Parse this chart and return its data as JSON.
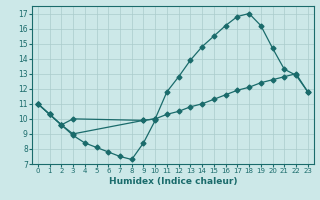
{
  "title": "",
  "xlabel": "Humidex (Indice chaleur)",
  "ylabel": "",
  "xlim": [
    -0.5,
    23.5
  ],
  "ylim": [
    7,
    17.5
  ],
  "xticks": [
    0,
    1,
    2,
    3,
    4,
    5,
    6,
    7,
    8,
    9,
    10,
    11,
    12,
    13,
    14,
    15,
    16,
    17,
    18,
    19,
    20,
    21,
    22,
    23
  ],
  "yticks": [
    7,
    8,
    9,
    10,
    11,
    12,
    13,
    14,
    15,
    16,
    17
  ],
  "bg_color": "#cce8e8",
  "grid_color": "#aacccc",
  "line_color": "#1a6b6b",
  "line1_x": [
    0,
    1,
    2,
    3,
    9,
    10,
    11,
    12,
    13,
    14,
    15,
    16,
    17,
    18,
    19,
    20,
    21,
    22,
    23
  ],
  "line1_y": [
    11,
    10.3,
    9.6,
    9.0,
    9.9,
    10.0,
    11.8,
    12.8,
    13.9,
    14.8,
    15.5,
    16.2,
    16.8,
    17.0,
    16.2,
    14.7,
    13.3,
    12.9,
    11.8
  ],
  "line2_x": [
    0,
    1,
    2,
    3,
    9,
    10,
    11,
    12,
    13,
    14,
    15,
    16,
    17,
    18,
    19,
    20,
    21,
    22,
    23
  ],
  "line2_y": [
    11,
    10.3,
    9.6,
    10.0,
    9.9,
    10.0,
    10.3,
    10.5,
    10.8,
    11.0,
    11.3,
    11.6,
    11.9,
    12.1,
    12.4,
    12.6,
    12.8,
    13.0,
    11.8
  ],
  "line3_x": [
    0,
    1,
    2,
    3,
    4,
    5,
    6,
    7,
    8,
    9,
    10
  ],
  "line3_y": [
    11,
    10.3,
    9.6,
    8.9,
    8.4,
    8.1,
    7.8,
    7.5,
    7.3,
    8.4,
    9.9
  ]
}
